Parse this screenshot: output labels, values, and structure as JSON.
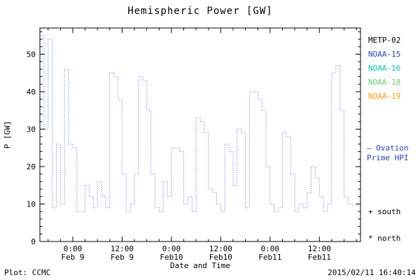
{
  "title": "Hemispheric Power [GW]",
  "footer": {
    "left": "Plot: CCMC",
    "right": "2015/02/11 16:40:14"
  },
  "legend": {
    "items": [
      {
        "label": "METP-02",
        "color": "#000000"
      },
      {
        "label": "NOAA-15",
        "color": "#2244bb"
      },
      {
        "label": "NOAA-16",
        "color": "#00c8c8"
      },
      {
        "label": "NOAA-18",
        "color": "#66cc66"
      },
      {
        "label": "NOAA-19",
        "color": "#ff9900"
      }
    ]
  },
  "annotations": {
    "ovation_line1": "— Ovation",
    "ovation_line2": "Prime HPI",
    "ovation_color": "#2244bb",
    "south": "+ south",
    "north": "* north"
  },
  "chart_data": {
    "type": "line",
    "title": "Hemispheric Power [GW]",
    "xlabel": "Date and Time",
    "ylabel": "P [GW]",
    "ylim": [
      0,
      57
    ],
    "xlim_hours": [
      -8,
      70
    ],
    "grid": false,
    "legend_position": "right",
    "y_ticks": [
      0,
      10,
      20,
      30,
      40,
      50
    ],
    "x_ticks": [
      {
        "pos": 0,
        "line1": "0:00",
        "line2": "Feb 9"
      },
      {
        "pos": 12,
        "line1": "12:00",
        "line2": "Feb 9"
      },
      {
        "pos": 24,
        "line1": "0:00",
        "line2": "Feb10"
      },
      {
        "pos": 36,
        "line1": "12:00",
        "line2": "Feb10"
      },
      {
        "pos": 48,
        "line1": "0:00",
        "line2": "Feb11"
      },
      {
        "pos": 60,
        "line1": "12:00",
        "line2": "Feb11"
      }
    ],
    "series": [
      {
        "name": "Ovation Prime HPI",
        "color": "#4169e1",
        "style": "dotted-step",
        "t_start": -8,
        "dt": 1,
        "values": [
          55,
          30,
          54,
          9,
          26,
          10,
          46,
          26,
          25,
          8,
          8,
          15,
          12,
          9,
          16,
          12,
          9,
          45,
          44,
          38,
          18,
          8,
          10,
          18,
          44,
          43,
          35,
          18,
          9,
          8,
          16,
          12,
          25,
          25,
          24,
          10,
          12,
          8,
          33,
          32,
          29,
          14,
          13,
          10,
          8,
          26,
          24,
          15,
          30,
          29,
          9,
          40,
          40,
          38,
          35,
          20,
          10,
          8,
          9,
          29,
          28,
          18,
          8,
          10,
          9,
          13,
          20,
          17,
          12,
          8,
          10,
          45,
          47,
          35,
          12,
          10,
          9
        ]
      }
    ]
  }
}
